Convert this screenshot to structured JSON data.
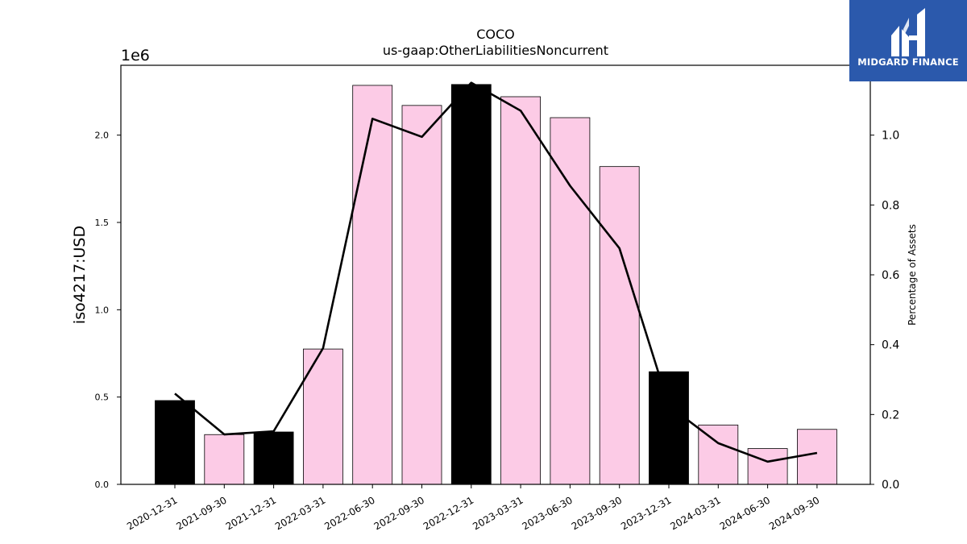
{
  "logo": {
    "text": "MIDGARD FINANCE",
    "background": "#2b59ac"
  },
  "chart_data": {
    "type": "bar",
    "title": "COCO",
    "subtitle": "us-gaap:OtherLiabilitiesNoncurrent",
    "ylabel": "iso4217:USD",
    "ylabel_right": "Percentage of Assets",
    "y_offset_text": "1e6",
    "ylim": [
      0,
      2.4
    ],
    "ylim_right": [
      0,
      1.2
    ],
    "yticks": [
      0.0,
      0.5,
      1.0,
      1.5,
      2.0
    ],
    "yticks_right": [
      0.0,
      0.2,
      0.4,
      0.6,
      0.8,
      1.0
    ],
    "categories": [
      "2020-12-31",
      "2021-09-30",
      "2021-12-31",
      "2022-03-31",
      "2022-06-30",
      "2022-09-30",
      "2022-12-31",
      "2023-03-31",
      "2023-06-30",
      "2023-09-30",
      "2023-12-31",
      "2024-03-31",
      "2024-06-30",
      "2024-09-30"
    ],
    "values": [
      0.48,
      0.285,
      0.3,
      0.775,
      2.285,
      2.17,
      2.29,
      2.22,
      2.1,
      1.82,
      0.645,
      0.34,
      0.205,
      0.315
    ],
    "bar_colors": [
      "#000000",
      "#fccbe6",
      "#000000",
      "#fccbe6",
      "#fccbe6",
      "#fccbe6",
      "#000000",
      "#fccbe6",
      "#fccbe6",
      "#fccbe6",
      "#000000",
      "#fccbe6",
      "#fccbe6",
      "#fccbe6"
    ],
    "line_values": [
      0.26,
      0.143,
      0.152,
      0.39,
      1.047,
      0.995,
      1.15,
      1.07,
      0.855,
      0.676,
      0.225,
      0.118,
      0.065,
      0.09
    ],
    "line_color": "#000000",
    "grid": false
  }
}
